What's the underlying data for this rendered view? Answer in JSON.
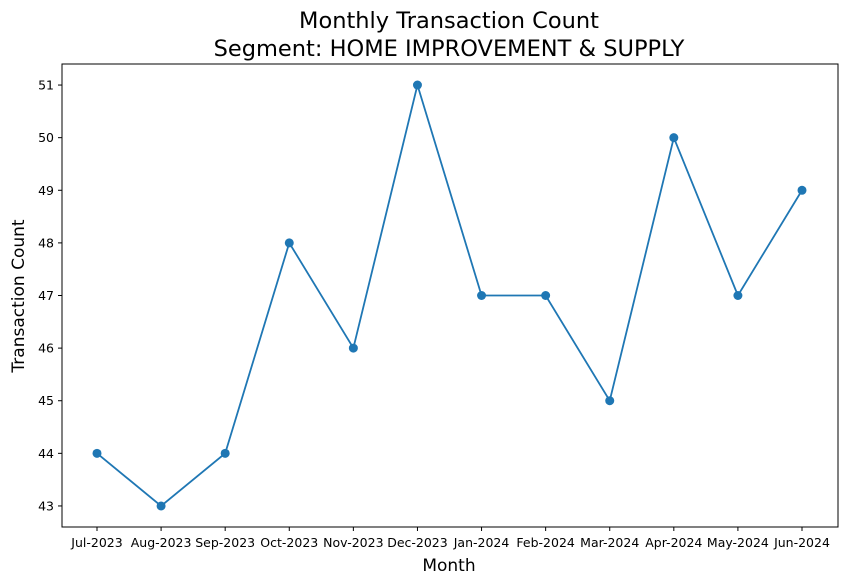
{
  "chart_data": {
    "type": "line",
    "title": "Monthly Transaction Count",
    "subtitle": "Segment: HOME IMPROVEMENT & SUPPLY",
    "xlabel": "Month",
    "ylabel": "Transaction Count",
    "categories": [
      "Jul-2023",
      "Aug-2023",
      "Sep-2023",
      "Oct-2023",
      "Nov-2023",
      "Dec-2023",
      "Jan-2024",
      "Feb-2024",
      "Mar-2024",
      "Apr-2024",
      "May-2024",
      "Jun-2024"
    ],
    "series": [
      {
        "values": [
          44,
          43,
          44,
          48,
          46,
          51,
          47,
          47,
          45,
          50,
          47,
          49
        ]
      }
    ],
    "yticks": [
      43,
      44,
      45,
      46,
      47,
      48,
      49,
      50,
      51
    ],
    "ylim": [
      42.6,
      51.4
    ],
    "grid": false,
    "line_color": "#1f77b4",
    "marker": "circle"
  }
}
